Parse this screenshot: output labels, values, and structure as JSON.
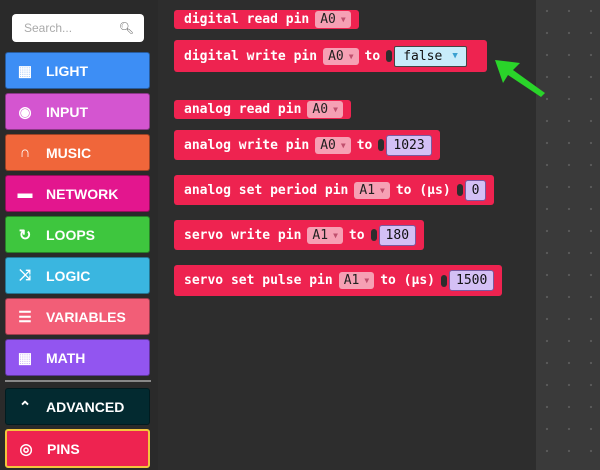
{
  "search": {
    "placeholder": "Search..."
  },
  "categories": [
    {
      "label": "LIGHT",
      "icon": "grid-icon",
      "color": "#3d8ef5"
    },
    {
      "label": "INPUT",
      "icon": "radio-button-icon",
      "color": "#d455d0"
    },
    {
      "label": "MUSIC",
      "icon": "headphones-icon",
      "color": "#f0663a"
    },
    {
      "label": "NETWORK",
      "icon": "chat-icon",
      "color": "#e3168e"
    },
    {
      "label": "LOOPS",
      "icon": "refresh-icon",
      "color": "#3ec63e"
    },
    {
      "label": "LOGIC",
      "icon": "shuffle-icon",
      "color": "#3ab6e0"
    },
    {
      "label": "VARIABLES",
      "icon": "list-icon",
      "color": "#f25e77"
    },
    {
      "label": "MATH",
      "icon": "calculator-icon",
      "color": "#9255f0"
    },
    {
      "label": "ADVANCED",
      "icon": "chevron-up-icon",
      "color": "#032a30"
    },
    {
      "label": "PINS",
      "icon": "target-icon",
      "color": "#ee2350"
    }
  ],
  "blocks": {
    "digital_read": {
      "text": "digital read pin",
      "pin": "A0"
    },
    "digital_write": {
      "text": "digital write pin",
      "pin": "A0",
      "to": "to",
      "value": "false"
    },
    "analog_read": {
      "text": "analog read pin",
      "pin": "A0"
    },
    "analog_write": {
      "text": "analog write pin",
      "pin": "A0",
      "to": "to",
      "value": "1023"
    },
    "analog_period": {
      "text": "analog set period pin",
      "pin": "A1",
      "to": "to (µs)",
      "value": "0"
    },
    "servo_write": {
      "text": "servo write pin",
      "pin": "A1",
      "to": "to",
      "value": "180"
    },
    "servo_pulse": {
      "text": "servo set pulse pin",
      "pin": "A1",
      "to": "to (µs)",
      "value": "1500"
    }
  },
  "annotation": {
    "arrow_color": "#2ad42a"
  }
}
